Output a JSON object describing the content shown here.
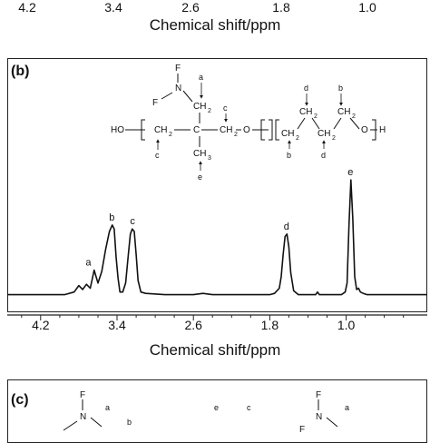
{
  "top_strip": {
    "ticks": [
      "4.2",
      "3.4",
      "2.6",
      "1.8",
      "1.0"
    ],
    "xlabel": "Chemical shift/ppm"
  },
  "panel_b": {
    "label": "(b)",
    "xlabel": "Chemical shift/ppm",
    "structure": {
      "end_left": "HO",
      "end_right": "H",
      "atoms": [
        "F",
        "N",
        "F",
        "C",
        "CH",
        "2",
        "O",
        "CH",
        "2",
        "CH",
        "2",
        "CH",
        "2",
        "CH",
        "2",
        "CH",
        "2",
        "CH",
        "3",
        "CH",
        "2",
        "O"
      ],
      "markers": [
        "a",
        "c",
        "c",
        "e",
        "d",
        "b",
        "b",
        "d"
      ]
    }
  },
  "panel_c": {
    "label": "(c)",
    "atoms": [
      "F",
      "N",
      "F",
      "N",
      "F"
    ],
    "markers": [
      "a",
      "b",
      "e",
      "c",
      "a"
    ]
  },
  "chart_data": {
    "type": "line",
    "xlabel": "Chemical shift/ppm",
    "ylabel": "",
    "xlim": [
      4.55,
      0.15
    ],
    "x_reversed": true,
    "x_ticks": [
      "4.2",
      "3.4",
      "2.6",
      "1.8",
      "1.0"
    ],
    "x_tick_values": [
      4.2,
      3.4,
      2.6,
      1.8,
      1.0
    ],
    "ylim": [
      0,
      1
    ],
    "series": [
      {
        "x": [
          4.55,
          3.95,
          3.85,
          3.8,
          3.76,
          3.72,
          3.68,
          3.64,
          3.6,
          3.56,
          3.52,
          3.48,
          3.45,
          3.43,
          3.41,
          3.39,
          3.37,
          3.34,
          3.31,
          3.28,
          3.26,
          3.24,
          3.22,
          3.2,
          3.18,
          3.15,
          3.1,
          2.9,
          2.8,
          2.7,
          2.6,
          2.5,
          2.4,
          2.3,
          2.2,
          2.1,
          2.0,
          1.8,
          1.75,
          1.7,
          1.68,
          1.66,
          1.64,
          1.62,
          1.6,
          1.58,
          1.55,
          1.5,
          1.4,
          1.32,
          1.3,
          1.28,
          1.2,
          1.1,
          1.05,
          1.03,
          1.01,
          0.99,
          0.97,
          0.95,
          0.93,
          0.91,
          0.89,
          0.87,
          0.85,
          0.82,
          0.78,
          0.7,
          0.5,
          0.15
        ],
        "y": [
          0.01,
          0.01,
          0.03,
          0.08,
          0.05,
          0.09,
          0.06,
          0.2,
          0.1,
          0.19,
          0.36,
          0.5,
          0.55,
          0.52,
          0.3,
          0.14,
          0.03,
          0.03,
          0.1,
          0.33,
          0.48,
          0.52,
          0.5,
          0.32,
          0.12,
          0.03,
          0.02,
          0.01,
          0.01,
          0.01,
          0.01,
          0.02,
          0.01,
          0.01,
          0.01,
          0.01,
          0.01,
          0.01,
          0.02,
          0.06,
          0.15,
          0.32,
          0.46,
          0.48,
          0.38,
          0.18,
          0.04,
          0.01,
          0.01,
          0.01,
          0.03,
          0.01,
          0.01,
          0.01,
          0.01,
          0.02,
          0.03,
          0.1,
          0.55,
          0.9,
          0.6,
          0.15,
          0.05,
          0.06,
          0.03,
          0.02,
          0.01,
          0.01,
          0.01,
          0.01
        ]
      }
    ],
    "annotations": [
      {
        "text": "a",
        "x": 3.7
      },
      {
        "text": "b",
        "x": 3.455
      },
      {
        "text": "c",
        "x": 3.235
      },
      {
        "text": "d",
        "x": 1.625
      },
      {
        "text": "e",
        "x": 0.955
      }
    ]
  }
}
